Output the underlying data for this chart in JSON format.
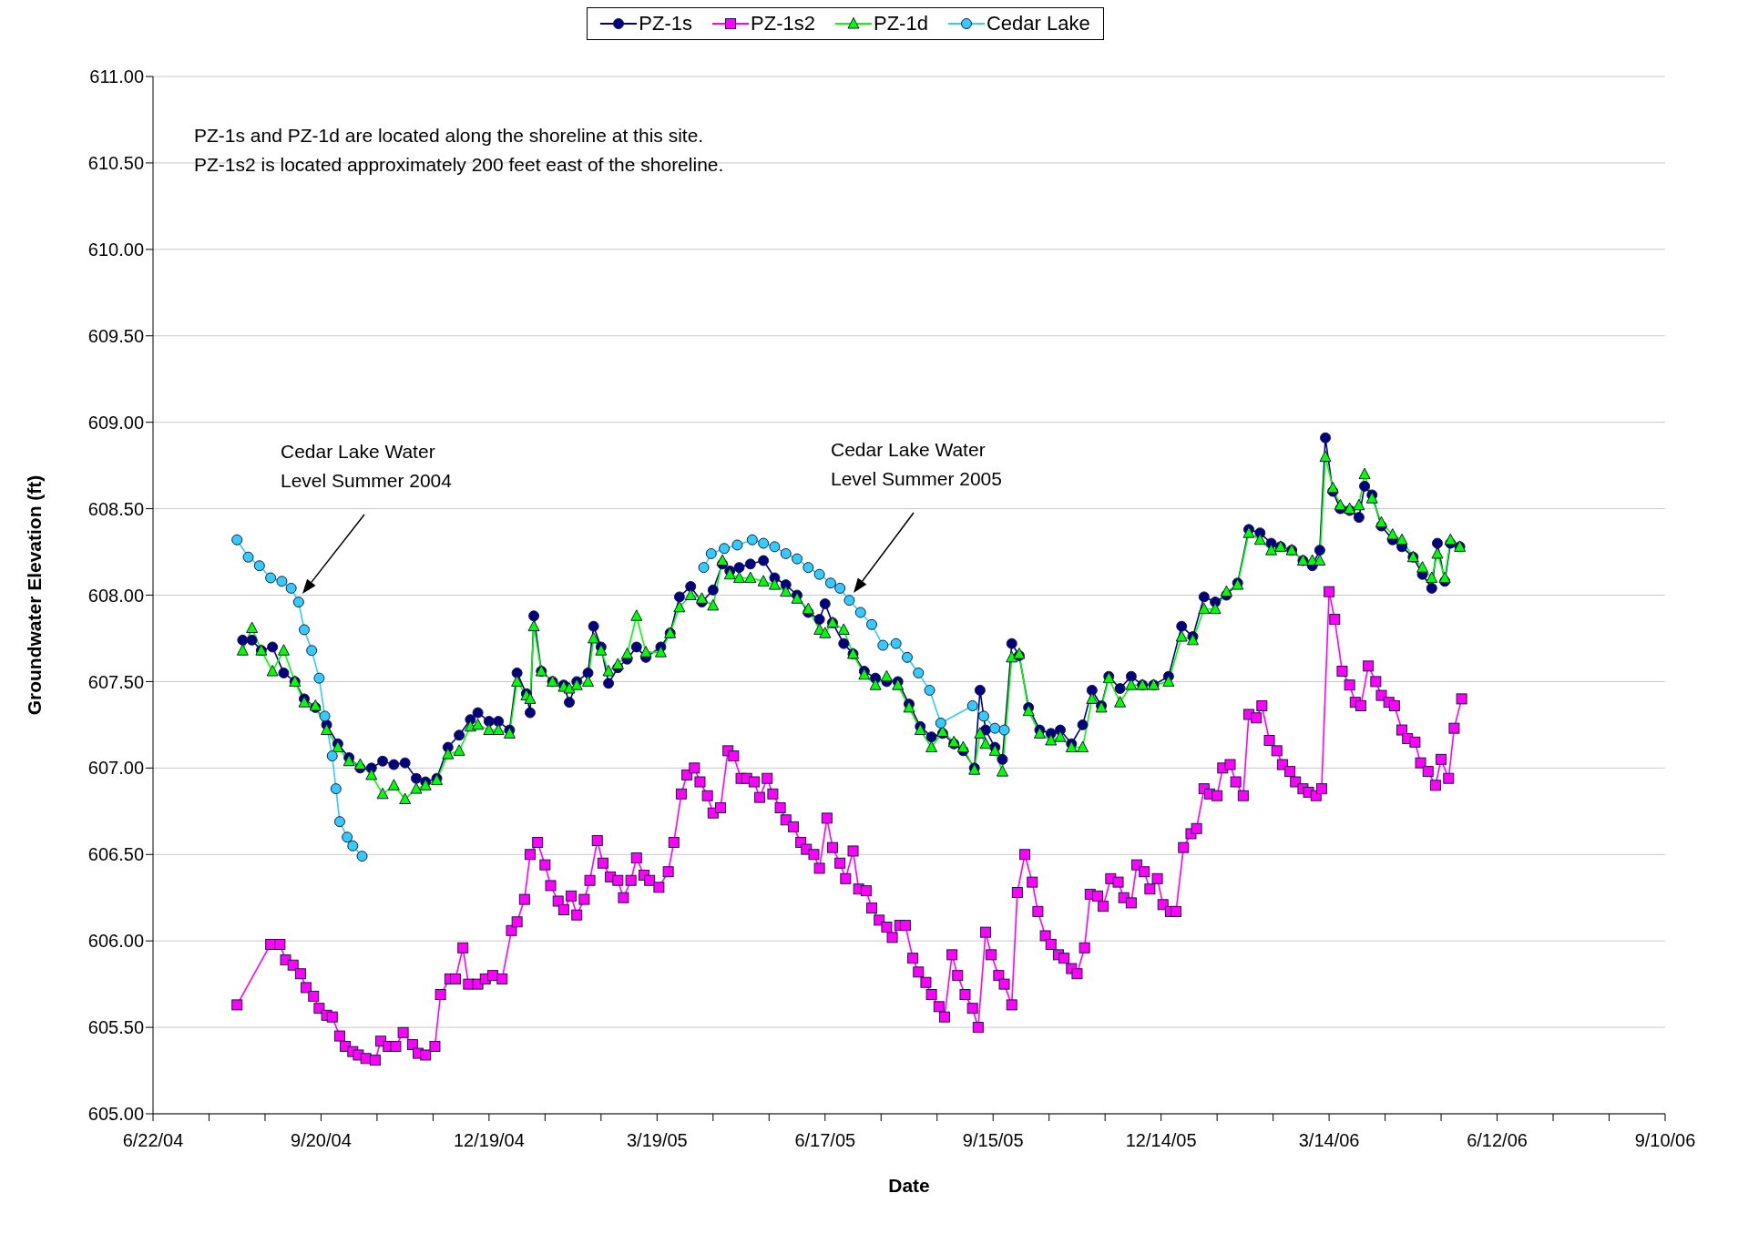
{
  "chart_data": {
    "type": "line",
    "xlabel": "Date",
    "ylabel": "Groundwater Elevation (ft)",
    "legend": "top",
    "grid": "y",
    "xlim": [
      "2004-06-22",
      "2006-09-10"
    ],
    "xticks": [
      {
        "value": "2004-06-22",
        "label": "6/22/04"
      },
      {
        "value": "2004-07-22",
        "label": null
      },
      {
        "value": "2004-08-21",
        "label": null
      },
      {
        "value": "2004-09-20",
        "label": "9/20/04"
      },
      {
        "value": "2004-10-20",
        "label": null
      },
      {
        "value": "2004-11-19",
        "label": null
      },
      {
        "value": "2004-12-19",
        "label": "12/19/04"
      },
      {
        "value": "2005-01-18",
        "label": null
      },
      {
        "value": "2005-02-17",
        "label": null
      },
      {
        "value": "2005-03-19",
        "label": "3/19/05"
      },
      {
        "value": "2005-04-18",
        "label": null
      },
      {
        "value": "2005-05-18",
        "label": null
      },
      {
        "value": "2005-06-17",
        "label": "6/17/05"
      },
      {
        "value": "2005-07-17",
        "label": null
      },
      {
        "value": "2005-08-16",
        "label": null
      },
      {
        "value": "2005-09-15",
        "label": "9/15/05"
      },
      {
        "value": "2005-10-15",
        "label": null
      },
      {
        "value": "2005-11-14",
        "label": null
      },
      {
        "value": "2005-12-14",
        "label": "12/14/05"
      },
      {
        "value": "2006-01-13",
        "label": null
      },
      {
        "value": "2006-02-12",
        "label": null
      },
      {
        "value": "2006-03-14",
        "label": "3/14/06"
      },
      {
        "value": "2006-04-13",
        "label": null
      },
      {
        "value": "2006-05-13",
        "label": null
      },
      {
        "value": "2006-06-12",
        "label": "6/12/06"
      },
      {
        "value": "2006-07-12",
        "label": null
      },
      {
        "value": "2006-08-11",
        "label": null
      },
      {
        "value": "2006-09-10",
        "label": "9/10/06"
      }
    ],
    "ylim": [
      605,
      611
    ],
    "yticks": [
      {
        "value": 605,
        "label": "605.00"
      },
      {
        "value": 605.5,
        "label": "605.50"
      },
      {
        "value": 606,
        "label": "606.00"
      },
      {
        "value": 606.5,
        "label": "606.50"
      },
      {
        "value": 607,
        "label": "607.00"
      },
      {
        "value": 607.5,
        "label": "607.50"
      },
      {
        "value": 608,
        "label": "608.00"
      },
      {
        "value": 608.5,
        "label": "608.50"
      },
      {
        "value": 609,
        "label": "609.00"
      },
      {
        "value": 609.5,
        "label": "609.50"
      },
      {
        "value": 610,
        "label": "610.00"
      },
      {
        "value": 610.5,
        "label": "610.50"
      },
      {
        "value": 611,
        "label": "611.00"
      }
    ],
    "annotations": [
      "PZ-1s and PZ-1d are located along the shoreline at this site.",
      "PZ-1s2 is located approximately 200 feet east of the shoreline.",
      "Cedar Lake Water\nLevel Summer 2004",
      "Cedar Lake Water\nLevel Summer 2005"
    ],
    "x": [
      "2004-08-09",
      "2004-08-14",
      "2004-08-19",
      "2004-08-25",
      "2004-08-31",
      "2004-09-06",
      "2004-09-11",
      "2004-09-17",
      "2004-09-23",
      "2004-09-29",
      "2004-10-05",
      "2004-10-11",
      "2004-10-17",
      "2004-10-23",
      "2004-10-29",
      "2004-11-04",
      "2004-11-10",
      "2004-11-15",
      "2004-11-21",
      "2004-11-27",
      "2004-12-03",
      "2004-12-09",
      "2004-12-13",
      "2004-12-19",
      "2004-12-24",
      "2004-12-30",
      "2005-01-03",
      "2005-01-08",
      "2005-01-10",
      "2005-01-12",
      "2005-01-16",
      "2005-01-22",
      "2005-01-28",
      "2005-01-31",
      "2005-02-04",
      "2005-02-10",
      "2005-02-13",
      "2005-02-17",
      "2005-02-21",
      "2005-02-26",
      "2005-03-03",
      "2005-03-08",
      "2005-03-13",
      "2005-03-21",
      "2005-03-26",
      "2005-03-31",
      "2005-04-06",
      "2005-04-12",
      "2005-04-18",
      "2005-04-23",
      "2005-04-27",
      "2005-05-02",
      "2005-05-08",
      "2005-05-15",
      "2005-05-21",
      "2005-05-27",
      "2005-06-02",
      "2005-06-08",
      "2005-06-14",
      "2005-06-17",
      "2005-06-21",
      "2005-06-27",
      "2005-07-02",
      "2005-07-08",
      "2005-07-14",
      "2005-07-20",
      "2005-07-26",
      "2005-08-01",
      "2005-08-07",
      "2005-08-13",
      "2005-08-19",
      "2005-08-25",
      "2005-08-30",
      "2005-09-05",
      "2005-09-08",
      "2005-09-11",
      "2005-09-16",
      "2005-09-20",
      "2005-09-25",
      "2005-09-29",
      "2005-10-04",
      "2005-10-10",
      "2005-10-16",
      "2005-10-21",
      "2005-10-27",
      "2005-11-02",
      "2005-11-07",
      "2005-11-12",
      "2005-11-16",
      "2005-11-22",
      "2005-11-28",
      "2005-12-04",
      "2005-12-10",
      "2005-12-18",
      "2005-12-25",
      "2005-12-31",
      "2006-01-06",
      "2006-01-12",
      "2006-01-18",
      "2006-01-24",
      "2006-01-30",
      "2006-02-05",
      "2006-02-11",
      "2006-02-16",
      "2006-02-22",
      "2006-02-28",
      "2006-03-05",
      "2006-03-09",
      "2006-03-12",
      "2006-03-16",
      "2006-03-20",
      "2006-03-25",
      "2006-03-30",
      "2006-04-02",
      "2006-04-06",
      "2006-04-11",
      "2006-04-17",
      "2006-04-22",
      "2006-04-28",
      "2006-05-03",
      "2006-05-08",
      "2006-05-11",
      "2006-05-15",
      "2006-05-18",
      "2006-05-23"
    ],
    "series": [
      {
        "name": "PZ-1s",
        "color": "#000080",
        "marker": "circle",
        "values": [
          607.74,
          607.74,
          607.68,
          607.7,
          607.55,
          607.5,
          607.4,
          607.35,
          607.25,
          607.14,
          607.06,
          607.0,
          607.0,
          607.04,
          607.02,
          607.03,
          606.94,
          606.92,
          606.94,
          607.12,
          607.19,
          607.28,
          607.32,
          607.27,
          607.27,
          607.22,
          607.55,
          607.43,
          607.32,
          607.88,
          607.56,
          607.5,
          607.48,
          607.38,
          607.5,
          607.55,
          607.82,
          607.7,
          607.49,
          607.58,
          607.63,
          607.7,
          607.64,
          607.7,
          607.78,
          607.99,
          608.05,
          607.96,
          608.03,
          608.18,
          608.14,
          608.16,
          608.18,
          608.2,
          608.1,
          608.06,
          608.0,
          607.9,
          607.86,
          607.95,
          607.84,
          607.72,
          607.66,
          607.56,
          607.52,
          607.5,
          607.5,
          607.37,
          607.24,
          607.18,
          607.2,
          607.14,
          607.1,
          607.0,
          607.45,
          607.22,
          607.12,
          607.05,
          607.72,
          607.65,
          607.35,
          607.22,
          607.2,
          607.22,
          607.14,
          607.25,
          607.45,
          607.36,
          607.53,
          607.46,
          607.53,
          607.48,
          607.48,
          607.53,
          607.82,
          607.76,
          607.99,
          607.96,
          608.0,
          608.07,
          608.38,
          608.36,
          608.3,
          608.28,
          608.26,
          608.2,
          608.17,
          608.26,
          608.91,
          608.6,
          608.5,
          608.49,
          608.45,
          608.63,
          608.58,
          608.4,
          608.32,
          608.28,
          608.22,
          608.12,
          608.04,
          608.3,
          608.08,
          608.3,
          608.28
        ]
      },
      {
        "name": "PZ-1s2",
        "color": "#ff00ff",
        "marker": "square",
        "x": [
          "2004-08-06",
          "2004-08-24",
          "2004-08-29",
          "2004-09-01",
          "2004-09-05",
          "2004-09-09",
          "2004-09-12",
          "2004-09-16",
          "2004-09-19",
          "2004-09-23",
          "2004-09-26",
          "2004-09-30",
          "2004-10-03",
          "2004-10-07",
          "2004-10-10",
          "2004-10-14",
          "2004-10-19",
          "2004-10-22",
          "2004-10-26",
          "2004-10-30",
          "2004-11-03",
          "2004-11-08",
          "2004-11-11",
          "2004-11-15",
          "2004-11-20",
          "2004-11-23",
          "2004-11-28",
          "2004-12-01",
          "2004-12-05",
          "2004-12-08",
          "2004-12-13",
          "2004-12-17",
          "2004-12-21",
          "2004-12-26",
          "2004-12-31",
          "2005-01-03",
          "2005-01-07",
          "2005-01-10",
          "2005-01-14",
          "2005-01-18",
          "2005-01-21",
          "2005-01-25",
          "2005-01-28",
          "2005-02-01",
          "2005-02-04",
          "2005-02-08",
          "2005-02-11",
          "2005-02-15",
          "2005-02-18",
          "2005-02-22",
          "2005-02-26",
          "2005-03-01",
          "2005-03-05",
          "2005-03-08",
          "2005-03-12",
          "2005-03-15",
          "2005-03-20",
          "2005-03-25",
          "2005-03-28",
          "2005-04-01",
          "2005-04-04",
          "2005-04-08",
          "2005-04-11",
          "2005-04-15",
          "2005-04-18",
          "2005-04-22",
          "2005-04-26",
          "2005-04-29",
          "2005-05-03",
          "2005-05-06",
          "2005-05-10",
          "2005-05-13",
          "2005-05-17",
          "2005-05-20",
          "2005-05-24",
          "2005-05-27",
          "2005-05-31",
          "2005-06-04",
          "2005-06-07",
          "2005-06-11",
          "2005-06-14",
          "2005-06-18",
          "2005-06-21",
          "2005-06-25",
          "2005-06-28",
          "2005-07-02",
          "2005-07-05",
          "2005-07-09",
          "2005-07-12",
          "2005-07-16",
          "2005-07-20",
          "2005-07-23",
          "2005-07-27",
          "2005-07-30",
          "2005-08-03",
          "2005-08-06",
          "2005-08-10",
          "2005-08-13",
          "2005-08-17",
          "2005-08-20",
          "2005-08-24",
          "2005-08-27",
          "2005-08-31",
          "2005-09-04",
          "2005-09-07",
          "2005-09-11",
          "2005-09-14",
          "2005-09-18",
          "2005-09-21",
          "2005-09-25",
          "2005-09-28",
          "2005-10-02",
          "2005-10-06",
          "2005-10-09",
          "2005-10-13",
          "2005-10-16",
          "2005-10-20",
          "2005-10-23",
          "2005-10-27",
          "2005-10-30",
          "2005-11-03",
          "2005-11-06",
          "2005-11-10",
          "2005-11-13",
          "2005-11-17",
          "2005-11-21",
          "2005-11-24",
          "2005-11-28",
          "2005-12-01",
          "2005-12-05",
          "2005-12-08",
          "2005-12-12",
          "2005-12-15",
          "2005-12-19",
          "2005-12-22",
          "2005-12-26",
          "2005-12-30",
          "2006-01-02",
          "2006-01-06",
          "2006-01-09",
          "2006-01-13",
          "2006-01-16",
          "2006-01-20",
          "2006-01-23",
          "2006-01-27",
          "2006-01-30",
          "2006-02-03",
          "2006-02-06",
          "2006-02-10",
          "2006-02-14",
          "2006-02-17",
          "2006-02-21",
          "2006-02-24",
          "2006-02-28",
          "2006-03-03",
          "2006-03-07",
          "2006-03-10",
          "2006-03-14",
          "2006-03-17",
          "2006-03-21",
          "2006-03-25",
          "2006-03-28",
          "2006-03-31",
          "2006-04-04",
          "2006-04-08",
          "2006-04-11",
          "2006-04-15",
          "2006-04-18",
          "2006-04-22",
          "2006-04-25",
          "2006-04-29",
          "2006-05-02",
          "2006-05-06",
          "2006-05-10",
          "2006-05-13",
          "2006-05-17",
          "2006-05-20",
          "2006-05-24"
        ],
        "values": [
          605.63,
          605.98,
          605.98,
          605.89,
          605.86,
          605.81,
          605.73,
          605.68,
          605.61,
          605.57,
          605.56,
          605.45,
          605.39,
          605.36,
          605.34,
          605.32,
          605.31,
          605.42,
          605.39,
          605.39,
          605.47,
          605.4,
          605.35,
          605.34,
          605.39,
          605.69,
          605.78,
          605.78,
          605.96,
          605.75,
          605.75,
          605.78,
          605.8,
          605.78,
          606.06,
          606.11,
          606.24,
          606.5,
          606.57,
          606.44,
          606.32,
          606.23,
          606.18,
          606.26,
          606.15,
          606.24,
          606.35,
          606.58,
          606.45,
          606.37,
          606.35,
          606.25,
          606.35,
          606.48,
          606.38,
          606.35,
          606.31,
          606.4,
          606.57,
          606.85,
          606.96,
          607.0,
          606.92,
          606.84,
          606.74,
          606.77,
          607.1,
          607.07,
          606.94,
          606.94,
          606.92,
          606.83,
          606.94,
          606.85,
          606.77,
          606.7,
          606.66,
          606.57,
          606.53,
          606.5,
          606.42,
          606.71,
          606.54,
          606.45,
          606.36,
          606.52,
          606.3,
          606.29,
          606.19,
          606.12,
          606.08,
          606.02,
          606.09,
          606.09,
          605.9,
          605.82,
          605.76,
          605.69,
          605.62,
          605.56,
          605.92,
          605.8,
          605.69,
          605.61,
          605.5,
          606.05,
          605.92,
          605.8,
          605.75,
          605.63,
          606.28,
          606.5,
          606.34,
          606.17,
          606.03,
          605.98,
          605.92,
          605.9,
          605.84,
          605.81,
          605.96,
          606.27,
          606.26,
          606.2,
          606.36,
          606.34,
          606.25,
          606.22,
          606.44,
          606.4,
          606.3,
          606.36,
          606.21,
          606.17,
          606.17,
          606.54,
          606.62,
          606.65,
          606.88,
          606.85,
          606.84,
          607.0,
          607.02,
          606.92,
          606.84,
          607.31,
          607.29,
          607.36,
          607.16,
          607.1,
          607.02,
          606.98,
          606.92,
          606.88,
          606.86,
          606.84,
          606.88,
          608.02,
          607.86,
          607.56,
          607.48,
          607.38,
          607.36,
          607.59,
          607.5,
          607.42,
          607.38,
          607.36,
          607.22,
          607.17,
          607.15,
          607.03,
          606.98,
          606.9,
          607.05,
          606.94,
          607.23,
          607.4
        ]
      },
      {
        "name": "PZ-1d",
        "color": "#00ff00",
        "marker": "triangle",
        "values": [
          607.68,
          607.81,
          607.68,
          607.56,
          607.68,
          607.5,
          607.38,
          607.36,
          607.22,
          607.12,
          607.04,
          607.02,
          606.96,
          606.85,
          606.9,
          606.82,
          606.88,
          606.9,
          606.93,
          607.08,
          607.1,
          607.24,
          607.25,
          607.22,
          607.22,
          607.2,
          607.5,
          607.42,
          607.4,
          607.82,
          607.56,
          607.5,
          607.47,
          607.46,
          607.48,
          607.5,
          607.75,
          607.68,
          607.56,
          607.6,
          607.66,
          607.88,
          607.67,
          607.67,
          607.78,
          607.93,
          608.0,
          607.98,
          607.94,
          608.2,
          608.12,
          608.1,
          608.1,
          608.08,
          608.06,
          608.02,
          607.98,
          607.92,
          607.8,
          607.78,
          607.84,
          607.8,
          607.66,
          607.54,
          607.48,
          607.53,
          607.48,
          607.35,
          607.22,
          607.12,
          607.21,
          607.15,
          607.12,
          606.99,
          607.2,
          607.14,
          607.1,
          606.98,
          607.64,
          607.66,
          607.33,
          607.2,
          607.16,
          607.18,
          607.12,
          607.12,
          607.4,
          607.35,
          607.52,
          607.38,
          607.48,
          607.48,
          607.48,
          607.5,
          607.76,
          607.74,
          607.92,
          607.92,
          608.02,
          608.06,
          608.36,
          608.32,
          608.26,
          608.28,
          608.26,
          608.2,
          608.2,
          608.2,
          608.8,
          608.62,
          608.52,
          608.5,
          608.52,
          608.7,
          608.56,
          608.42,
          608.35,
          608.32,
          608.22,
          608.16,
          608.1,
          608.24,
          608.1,
          608.32,
          608.28
        ]
      },
      {
        "name": "Cedar Lake",
        "color": "#33ccff",
        "marker": "circle",
        "x": [
          "2004-08-06",
          "2004-08-12",
          "2004-08-18",
          "2004-08-24",
          "2004-08-30",
          "2004-09-04",
          "2004-09-08",
          "2004-09-11",
          "2004-09-15",
          "2004-09-19",
          "2004-09-22",
          "2004-09-26",
          "2004-09-28",
          "2004-09-30",
          "2004-10-04",
          "2004-10-07",
          "2004-10-12",
          "2005-01-01",
          "2005-04-13",
          "2005-04-17",
          "2005-04-24",
          "2005-05-01",
          "2005-05-09",
          "2005-05-15",
          "2005-05-21",
          "2005-05-27",
          "2005-06-02",
          "2005-06-08",
          "2005-06-14",
          "2005-06-20",
          "2005-06-25",
          "2005-06-30",
          "2005-07-06",
          "2005-07-12",
          "2005-07-18",
          "2005-07-25",
          "2005-07-31",
          "2005-08-06",
          "2005-08-12",
          "2005-08-18",
          "2005-09-04",
          "2005-09-10",
          "2005-09-16",
          "2005-09-21"
        ],
        "values": [
          608.32,
          608.22,
          608.17,
          608.1,
          608.08,
          608.04,
          607.96,
          607.8,
          607.68,
          607.52,
          607.3,
          607.07,
          606.88,
          606.69,
          606.6,
          606.55,
          606.49,
          null,
          608.16,
          608.24,
          608.27,
          608.29,
          608.32,
          608.3,
          608.28,
          608.24,
          608.21,
          608.16,
          608.12,
          608.07,
          608.04,
          607.97,
          607.9,
          607.83,
          607.71,
          607.72,
          607.64,
          607.55,
          607.45,
          607.26,
          607.36,
          607.3,
          607.23,
          607.22
        ]
      }
    ]
  }
}
